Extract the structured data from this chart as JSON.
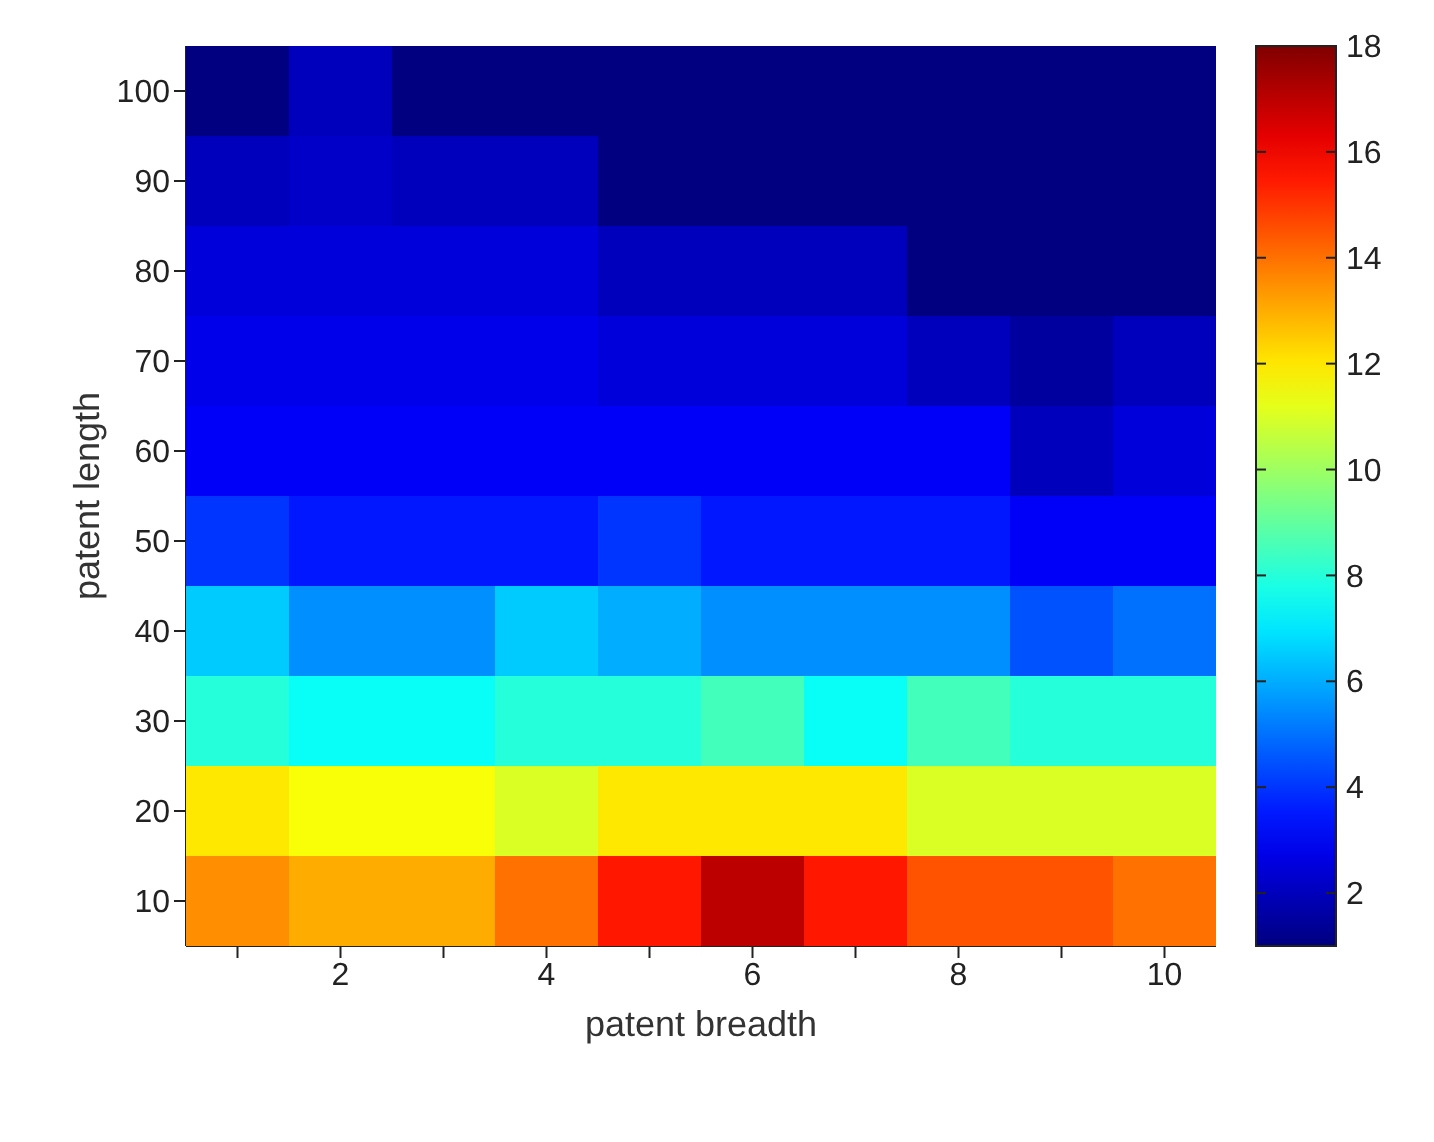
{
  "chart_data": {
    "type": "heatmap",
    "xlabel": "patent breadth",
    "ylabel": "patent length",
    "categories": [
      null,
      "2",
      null,
      "4",
      null,
      "6",
      null,
      "8",
      null,
      "10"
    ],
    "y_categories": [
      "100",
      "90",
      "80",
      "70",
      "60",
      "50",
      "40",
      "30",
      "20",
      "10"
    ],
    "cells": [
      [
        1,
        2,
        1,
        1,
        1,
        1,
        1,
        1,
        1,
        1
      ],
      [
        2,
        2.2,
        2,
        2,
        1,
        1,
        1,
        1,
        1,
        1
      ],
      [
        2.5,
        2.5,
        2.5,
        2.5,
        2,
        2,
        2,
        1,
        1,
        1
      ],
      [
        2.8,
        2.8,
        2.8,
        2.8,
        2.5,
        2.5,
        2.5,
        2,
        1.5,
        2
      ],
      [
        3,
        3,
        3,
        3,
        3,
        3,
        3,
        3,
        2,
        2.5
      ],
      [
        4,
        3.5,
        3.5,
        3.5,
        4,
        3.5,
        3.5,
        3.5,
        3,
        3
      ],
      [
        6.5,
        5.5,
        5.5,
        6.5,
        6,
        5.5,
        5.5,
        5.5,
        4.5,
        5
      ],
      [
        8,
        7.5,
        7.5,
        8,
        8,
        8.5,
        7.5,
        8.5,
        8,
        8
      ],
      [
        12,
        11.5,
        11.5,
        11,
        12,
        12,
        12,
        11,
        11,
        11
      ],
      [
        13.5,
        13,
        13,
        14,
        15.5,
        17,
        15.5,
        14.5,
        14.5,
        14
      ]
    ],
    "clim": [
      1,
      18
    ],
    "cticks": [
      2,
      4,
      6,
      8,
      10,
      12,
      14,
      16,
      18
    ]
  }
}
